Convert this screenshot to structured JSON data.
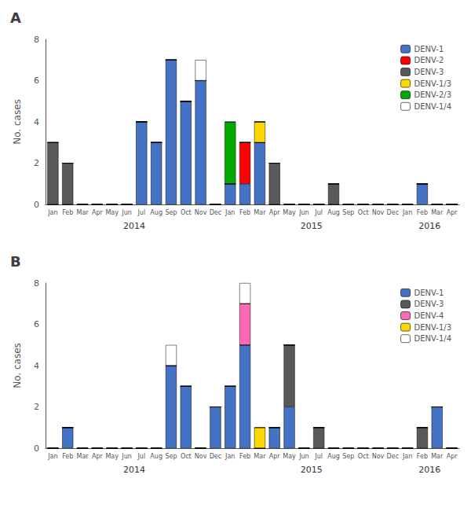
{
  "chart_data": [
    {
      "type": "bar",
      "title": "A",
      "stacked": true,
      "legend": "upper right",
      "categories": [
        "Jan",
        "Feb",
        "Mar",
        "Apr",
        "May",
        "Jun",
        "Jul",
        "Aug",
        "Sep",
        "Oct",
        "Nov",
        "Dec",
        "Jan",
        "Feb",
        "Mar",
        "Apr",
        "May",
        "Jun",
        "Jul",
        "Aug",
        "Sep",
        "Oct",
        "Nov",
        "Dec",
        "Jan",
        "Feb",
        "Mar",
        "Apr"
      ],
      "series": [
        {
          "name": "DENV-1",
          "color": "#4472C4",
          "values": [
            0,
            0,
            0,
            0,
            0,
            0,
            4,
            3,
            7,
            5,
            6,
            0,
            1,
            1,
            3,
            0,
            0,
            0,
            0,
            0,
            0,
            0,
            0,
            0,
            0,
            1,
            0,
            0
          ]
        },
        {
          "name": "DENV-2",
          "color": "#FF0000",
          "values": [
            0,
            0,
            0,
            0,
            0,
            0,
            0,
            0,
            0,
            0,
            0,
            0,
            0,
            2,
            0,
            0,
            0,
            0,
            0,
            0,
            0,
            0,
            0,
            0,
            0,
            0,
            0,
            0
          ]
        },
        {
          "name": "DENV-3",
          "color": "#595959",
          "values": [
            3,
            2,
            0,
            0,
            0,
            0,
            0,
            0,
            0,
            0,
            0,
            0,
            0,
            0,
            0,
            2,
            0,
            0,
            0,
            1,
            0,
            0,
            0,
            0,
            0,
            0,
            0,
            0
          ]
        },
        {
          "name": "DENV-1/3",
          "color": "#FFD700",
          "values": [
            0,
            0,
            0,
            0,
            0,
            0,
            0,
            0,
            0,
            0,
            0,
            0,
            0,
            0,
            1,
            0,
            0,
            0,
            0,
            0,
            0,
            0,
            0,
            0,
            0,
            0,
            0,
            0
          ]
        },
        {
          "name": "DENV-2/3",
          "color": "#00AA00",
          "values": [
            0,
            0,
            0,
            0,
            0,
            0,
            0,
            0,
            0,
            0,
            0,
            0,
            3,
            0,
            0,
            0,
            0,
            0,
            0,
            0,
            0,
            0,
            0,
            0,
            0,
            0,
            0,
            0
          ]
        },
        {
          "name": "DENV-1/4",
          "color": "#FFFFFF",
          "values": [
            0,
            0,
            0,
            0,
            0,
            0,
            0,
            0,
            0,
            0,
            1,
            0,
            0,
            0,
            0,
            0,
            0,
            0,
            0,
            0,
            0,
            0,
            0,
            0,
            0,
            0,
            0,
            0
          ]
        }
      ],
      "ylabel": "No. cases",
      "ylim": [
        0,
        8
      ],
      "yticks": [
        0,
        2,
        4,
        6,
        8
      ],
      "annotations": [
        {
          "text": "2014",
          "x": [
            0,
            11
          ]
        },
        {
          "text": "2015",
          "x": [
            12,
            23
          ]
        },
        {
          "text": "2016",
          "x": [
            24,
            27
          ]
        }
      ]
    },
    {
      "type": "bar",
      "title": "B",
      "stacked": true,
      "legend": "upper right",
      "categories": [
        "Jan",
        "Feb",
        "Mar",
        "Apr",
        "May",
        "Jun",
        "Jul",
        "Aug",
        "Sep",
        "Oct",
        "Nov",
        "Dec",
        "Jan",
        "Feb",
        "Mar",
        "Apr",
        "May",
        "Jun",
        "Jul",
        "Aug",
        "Sep",
        "Oct",
        "Nov",
        "Dec",
        "Jan",
        "Feb",
        "Mar",
        "Apr"
      ],
      "series": [
        {
          "name": "DENV-1",
          "color": "#4472C4",
          "values": [
            0,
            1,
            0,
            0,
            0,
            0,
            0,
            0,
            4,
            3,
            0,
            2,
            3,
            5,
            0,
            1,
            2,
            0,
            0,
            0,
            0,
            0,
            0,
            0,
            0,
            0,
            2,
            0
          ]
        },
        {
          "name": "DENV-3",
          "color": "#595959",
          "values": [
            0,
            0,
            0,
            0,
            0,
            0,
            0,
            0,
            0,
            0,
            0,
            0,
            0,
            0,
            0,
            0,
            3,
            0,
            1,
            0,
            0,
            0,
            0,
            0,
            0,
            1,
            0,
            0
          ]
        },
        {
          "name": "DENV-4",
          "color": "#FF69B4",
          "values": [
            0,
            0,
            0,
            0,
            0,
            0,
            0,
            0,
            0,
            0,
            0,
            0,
            0,
            2,
            0,
            0,
            0,
            0,
            0,
            0,
            0,
            0,
            0,
            0,
            0,
            0,
            0,
            0
          ]
        },
        {
          "name": "DENV-1/3",
          "color": "#FFD700",
          "values": [
            0,
            0,
            0,
            0,
            0,
            0,
            0,
            0,
            0,
            0,
            0,
            0,
            0,
            0,
            1,
            0,
            0,
            0,
            0,
            0,
            0,
            0,
            0,
            0,
            0,
            0,
            0,
            0
          ]
        },
        {
          "name": "DENV-1/4",
          "color": "#FFFFFF",
          "values": [
            0,
            0,
            0,
            0,
            0,
            0,
            0,
            0,
            1,
            0,
            0,
            0,
            0,
            1,
            0,
            0,
            0,
            0,
            0,
            0,
            0,
            0,
            0,
            0,
            0,
            0,
            0,
            0
          ]
        }
      ],
      "ylabel": "No. cases",
      "ylim": [
        0,
        8
      ],
      "yticks": [
        0,
        2,
        4,
        6,
        8
      ],
      "annotations": [
        {
          "text": "2014",
          "x": [
            0,
            11
          ]
        },
        {
          "text": "2015",
          "x": [
            12,
            23
          ]
        },
        {
          "text": "2016",
          "x": [
            24,
            27
          ]
        }
      ]
    }
  ]
}
